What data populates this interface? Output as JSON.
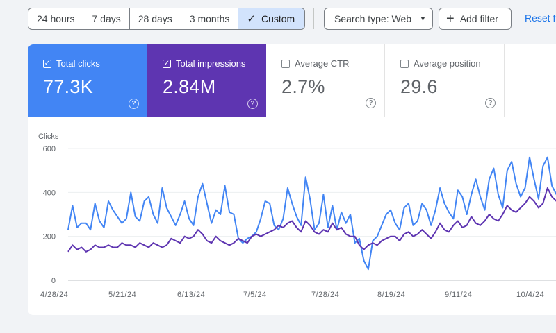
{
  "toolbar": {
    "date_ranges": [
      "24 hours",
      "7 days",
      "28 days",
      "3 months",
      "Custom"
    ],
    "active_range": "Custom",
    "search_type": "Search type: Web",
    "add_filter": "Add filter",
    "reset": "Reset fi"
  },
  "metrics": [
    {
      "label": "Total clicks",
      "value": "77.3K",
      "checked": true
    },
    {
      "label": "Total impressions",
      "value": "2.84M",
      "checked": true
    },
    {
      "label": "Average CTR",
      "value": "2.7%",
      "checked": false
    },
    {
      "label": "Average position",
      "value": "29.6",
      "checked": false
    }
  ],
  "colors": {
    "clicks": "#4285f4",
    "impressions": "#5e35b1",
    "accent": "#1a73e8"
  },
  "chart_data": {
    "type": "line",
    "ylabel": "Clicks",
    "ylim": [
      0,
      600
    ],
    "y_ticks": [
      "0",
      "200",
      "400",
      "600"
    ],
    "x_tick_labels": [
      "4/28/24",
      "5/21/24",
      "6/13/24",
      "7/5/24",
      "7/28/24",
      "8/19/24",
      "9/11/24",
      "10/4/24"
    ],
    "grid": "horizontal",
    "series": [
      {
        "name": "Total clicks",
        "values": [
          230,
          340,
          240,
          260,
          260,
          230,
          350,
          270,
          240,
          360,
          320,
          290,
          260,
          280,
          400,
          290,
          270,
          360,
          380,
          300,
          260,
          420,
          330,
          290,
          250,
          300,
          360,
          280,
          250,
          380,
          440,
          350,
          260,
          320,
          300,
          430,
          310,
          300,
          190,
          170,
          190,
          200,
          220,
          280,
          360,
          350,
          250,
          230,
          280,
          420,
          350,
          290,
          250,
          470,
          370,
          230,
          260,
          390,
          240,
          340,
          230,
          310,
          260,
          300,
          170,
          190,
          90,
          50,
          180,
          200,
          250,
          300,
          320,
          260,
          230,
          330,
          350,
          250,
          270,
          350,
          320,
          250,
          320,
          420,
          350,
          310,
          280,
          410,
          380,
          300,
          390,
          460,
          380,
          320,
          460,
          510,
          390,
          330,
          500,
          540,
          440,
          380,
          420,
          560,
          460,
          370,
          520,
          560,
          430,
          390,
          520,
          480,
          420
        ],
        "description": "y values approximate in chart units; line spans 4/28/24 to ~10/15/24"
      },
      {
        "name": "Total impressions",
        "values": [
          130,
          160,
          140,
          150,
          130,
          140,
          160,
          150,
          150,
          160,
          150,
          150,
          170,
          160,
          160,
          150,
          170,
          160,
          150,
          170,
          160,
          150,
          160,
          190,
          180,
          170,
          200,
          190,
          200,
          230,
          210,
          180,
          170,
          200,
          180,
          170,
          160,
          170,
          190,
          180,
          170,
          200,
          210,
          200,
          210,
          220,
          230,
          250,
          240,
          260,
          270,
          240,
          220,
          270,
          250,
          220,
          210,
          230,
          220,
          260,
          230,
          240,
          210,
          200,
          200,
          160,
          140,
          160,
          170,
          160,
          180,
          190,
          200,
          200,
          180,
          210,
          220,
          200,
          210,
          230,
          210,
          190,
          220,
          260,
          230,
          220,
          250,
          270,
          240,
          250,
          290,
          260,
          250,
          270,
          300,
          280,
          270,
          300,
          340,
          320,
          310,
          330,
          350,
          380,
          360,
          330,
          350,
          420,
          380,
          360,
          390,
          410,
          380
        ]
      }
    ]
  }
}
